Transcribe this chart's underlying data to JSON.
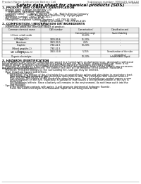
{
  "title": "Safety data sheet for chemical products (SDS)",
  "header_left": "Product Name: Lithium Ion Battery Cell",
  "header_right_line1": "Substance number: 9965491-008110",
  "header_right_line2": "Established / Revision: Dec.7.2010",
  "section1_title": "1. PRODUCT AND COMPANY IDENTIFICATION",
  "section1_lines": [
    "  · Product name: Lithium Ion Battery Cell",
    "  · Product code: Cylindrical-type cell",
    "        (UR18650J, UR18650L, UR18650A)",
    "  · Company name:       Sanyo Electric Co., Ltd., Mobile Energy Company",
    "  · Address:               2001  Kamikosaka, Sumoto-City, Hyogo, Japan",
    "  · Telephone number:   +81-799-26-4111",
    "  · Fax number:   +81-799-26-4125",
    "  · Emergency telephone number (daytime): +81-799-26-3942",
    "                                                [Night and holiday]: +81-799-26-4125"
  ],
  "section2_title": "2. COMPOSITION / INFORMATION ON INGREDIENTS",
  "section2_lines": [
    "  · Substance or preparation: Preparation",
    "  · Information about the chemical nature of product:"
  ],
  "table_headers": [
    "Common chemical name",
    "CAS number",
    "Concentration /\nConcentration range",
    "Classification and\nhazard labeling"
  ],
  "table_rows": [
    [
      "Lithium cobalt oxide\n(LiMnCoO2(O))",
      "-",
      "30-60%",
      "-"
    ],
    [
      "Iron",
      "7439-89-6",
      "15-25%",
      "-"
    ],
    [
      "Aluminum",
      "7429-90-5",
      "2-6%",
      "-"
    ],
    [
      "Graphite\n(Mixed graphite-1)\n(All lithio graphite-1)",
      "7782-42-5\n7782-42-5",
      "10-20%",
      "-"
    ],
    [
      "Copper",
      "7440-50-8",
      "5-15%",
      "Sensitization of the skin\ngroup No.2"
    ],
    [
      "Organic electrolyte",
      "-",
      "10-20%",
      "Inflammable liquid"
    ]
  ],
  "section3_title": "3. HAZARDS IDENTIFICATION",
  "section3_lines": [
    "For the battery cell, chemical materials are stored in a hermetically sealed metal case, designed to withstand",
    "temperatures and pressures-concentrations during normal use. As a result, during normal use, there is no",
    "physical danger of ignition or explosion and therefore danger of hazardous materials leakage.",
    "    However, if exposed to a fire, added mechanical shocks, decomposed, when electro without any measures,",
    "the gas release cannot be operated. The battery cell case will be breakout of fire-polyme. Hazardous",
    "materials may be released.",
    "    Moreover, if heated strongly by the surrounding fire, soot gas may be emitted."
  ],
  "section3_bullet1": "  · Most important hazard and effects:",
  "section3_human": "      Human health effects:",
  "section3_inhalation": [
    "          Inhalation: The release of the electrolyte has an anaesthesia action and stimulates in respiratory tract.",
    "          Skin contact: The release of the electrolyte stimulates a skin. The electrolyte skin contact causes a",
    "          sore and stimulation on the skin.",
    "          Eye contact: The release of the electrolyte stimulates eyes. The electrolyte eye contact causes a sore",
    "          and stimulation on the eye. Especially, a substance that causes a strong inflammation of the eye is",
    "          contained."
  ],
  "section3_env": [
    "          Environmental effects: Since a battery cell remains in the environment, do not throw out it into the",
    "          environment."
  ],
  "section3_bullet2": "  · Specific hazards:",
  "section3_specific": [
    "          If the electrolyte contacts with water, it will generate detrimental hydrogen fluoride.",
    "          Since the used electrolyte is inflammable liquid, do not bring close to fire."
  ],
  "bg_color": "#ffffff",
  "text_color": "#000000",
  "gray_text": "#555555",
  "line_color": "#aaaaaa",
  "table_border_color": "#888888",
  "table_header_bg": "#e8e8e8"
}
